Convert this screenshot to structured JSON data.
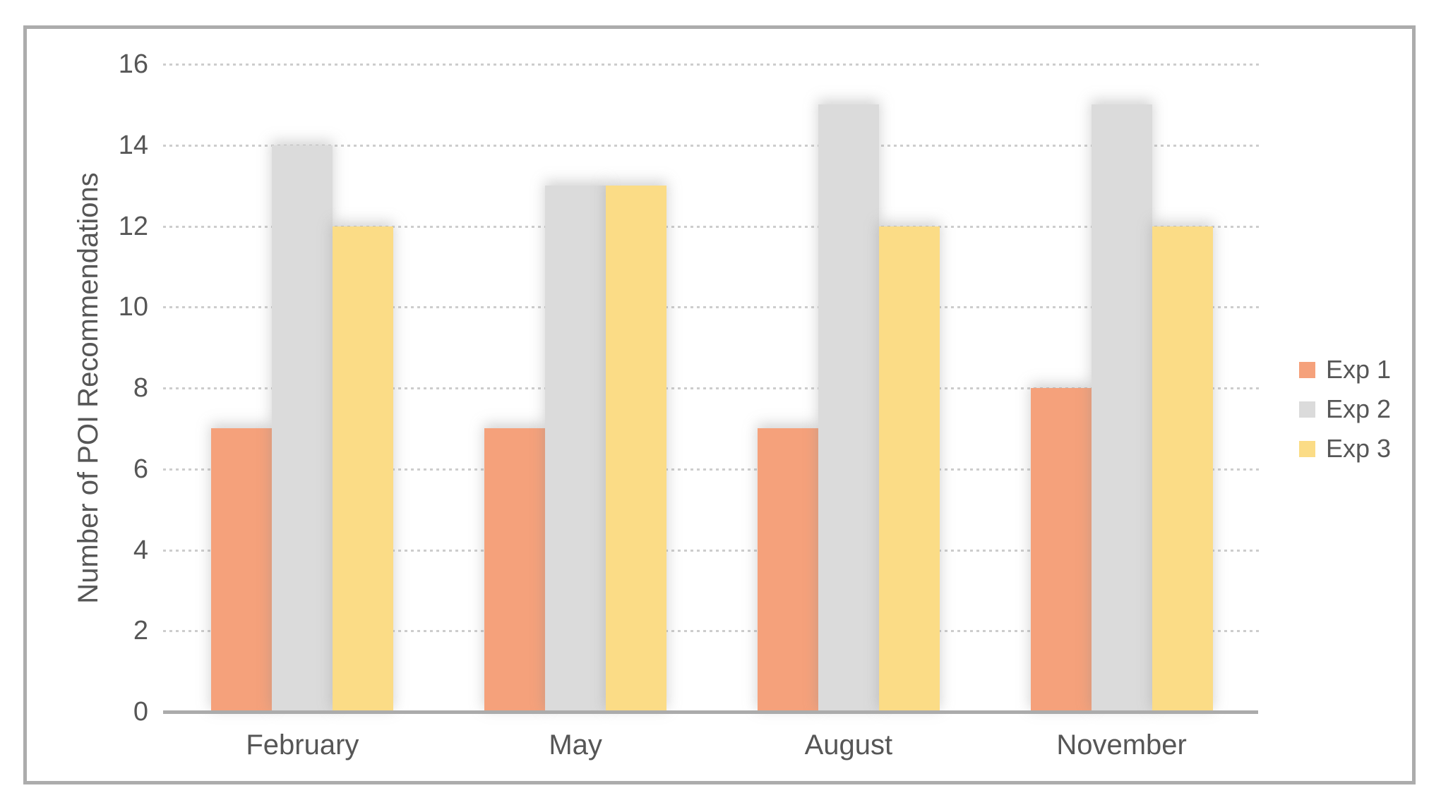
{
  "chart_data": {
    "type": "bar",
    "categories": [
      "February",
      "May",
      "August",
      "November"
    ],
    "series": [
      {
        "name": "Exp 1",
        "color": "#F5A17B",
        "values": [
          7,
          7,
          7,
          8
        ]
      },
      {
        "name": "Exp 2",
        "color": "#DBDBDB",
        "values": [
          14,
          13,
          15,
          15
        ]
      },
      {
        "name": "Exp 3",
        "color": "#FBDC86",
        "values": [
          12,
          13,
          12,
          12
        ]
      }
    ],
    "title": "",
    "xlabel": "",
    "ylabel": "Number of POI Recommendations",
    "ylim": [
      0,
      16
    ],
    "ytick_step": 2,
    "yticks": [
      0,
      2,
      4,
      6,
      8,
      10,
      12,
      14,
      16
    ],
    "grid": "horizontal-dotted",
    "legend_position": "right",
    "colors": {
      "text": "#565656",
      "axis_line": "#ABABAB",
      "gridline": "#CDCDCD",
      "frame_border": "#ACACAC",
      "background": "#FFFFFF"
    }
  }
}
